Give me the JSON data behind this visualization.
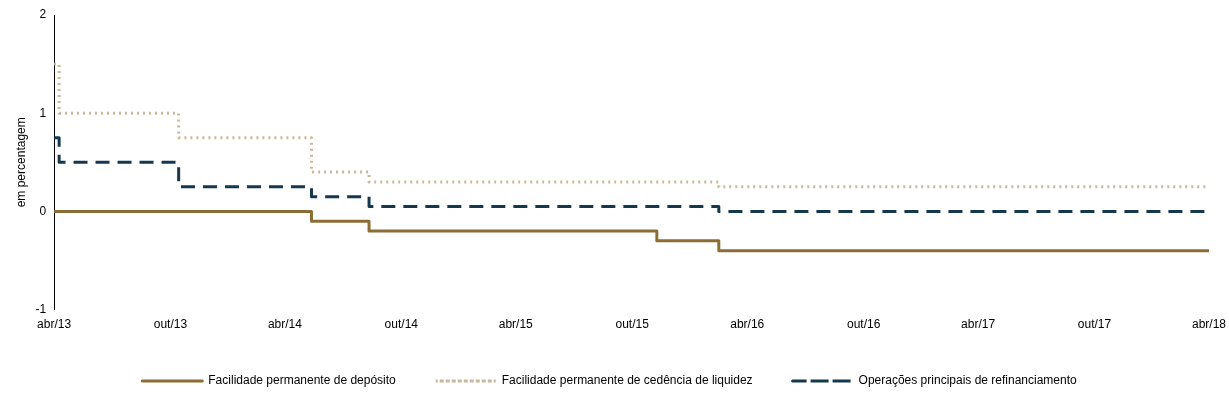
{
  "chart_data": {
    "type": "step",
    "ylabel": "em percentagem",
    "ylim": [
      -1,
      2
    ],
    "yticks": [
      -1,
      0,
      1,
      2
    ],
    "xlim": [
      "2013-04-30",
      "2018-04-30"
    ],
    "xticks": [
      {
        "value": "2013-04-30",
        "label": "abr/13"
      },
      {
        "value": "2013-10-31",
        "label": "out/13"
      },
      {
        "value": "2014-04-30",
        "label": "abr/14"
      },
      {
        "value": "2014-10-31",
        "label": "out/14"
      },
      {
        "value": "2015-04-30",
        "label": "abr/15"
      },
      {
        "value": "2015-10-31",
        "label": "out/15"
      },
      {
        "value": "2016-04-30",
        "label": "abr/16"
      },
      {
        "value": "2016-10-31",
        "label": "out/16"
      },
      {
        "value": "2017-04-30",
        "label": "abr/17"
      },
      {
        "value": "2017-10-31",
        "label": "out/17"
      },
      {
        "value": "2018-04-30",
        "label": "abr/18"
      }
    ],
    "grid": false,
    "legend": "bottom",
    "series": [
      {
        "name": "Facilidade permanente de depósito",
        "color": "#8b6d35",
        "line_style": "solid",
        "x": [
          "2013-04-30",
          "2013-05-08",
          "2013-11-13",
          "2014-06-11",
          "2014-09-10",
          "2015-12-09",
          "2016-03-16",
          "2018-04-30"
        ],
        "values": [
          0,
          0,
          0,
          -0.1,
          -0.2,
          -0.3,
          -0.4,
          -0.4
        ]
      },
      {
        "name": "Facilidade permanente de cedência de liquidez",
        "color": "#c9b99b",
        "line_style": "dotted",
        "x": [
          "2013-04-30",
          "2013-05-08",
          "2013-11-13",
          "2014-06-11",
          "2014-09-10",
          "2015-12-09",
          "2016-03-16",
          "2018-04-30"
        ],
        "values": [
          1.5,
          1,
          0.75,
          0.4,
          0.3,
          0.3,
          0.25,
          0.25
        ]
      },
      {
        "name": "Operações principais de refinanciamento",
        "color": "#15384f",
        "line_style": "dashed",
        "x": [
          "2013-04-30",
          "2013-05-08",
          "2013-11-13",
          "2014-06-11",
          "2014-09-10",
          "2015-12-09",
          "2016-03-16",
          "2018-04-30"
        ],
        "values": [
          0.75,
          0.5,
          0.25,
          0.15,
          0.05,
          0.05,
          0,
          0
        ]
      }
    ]
  }
}
